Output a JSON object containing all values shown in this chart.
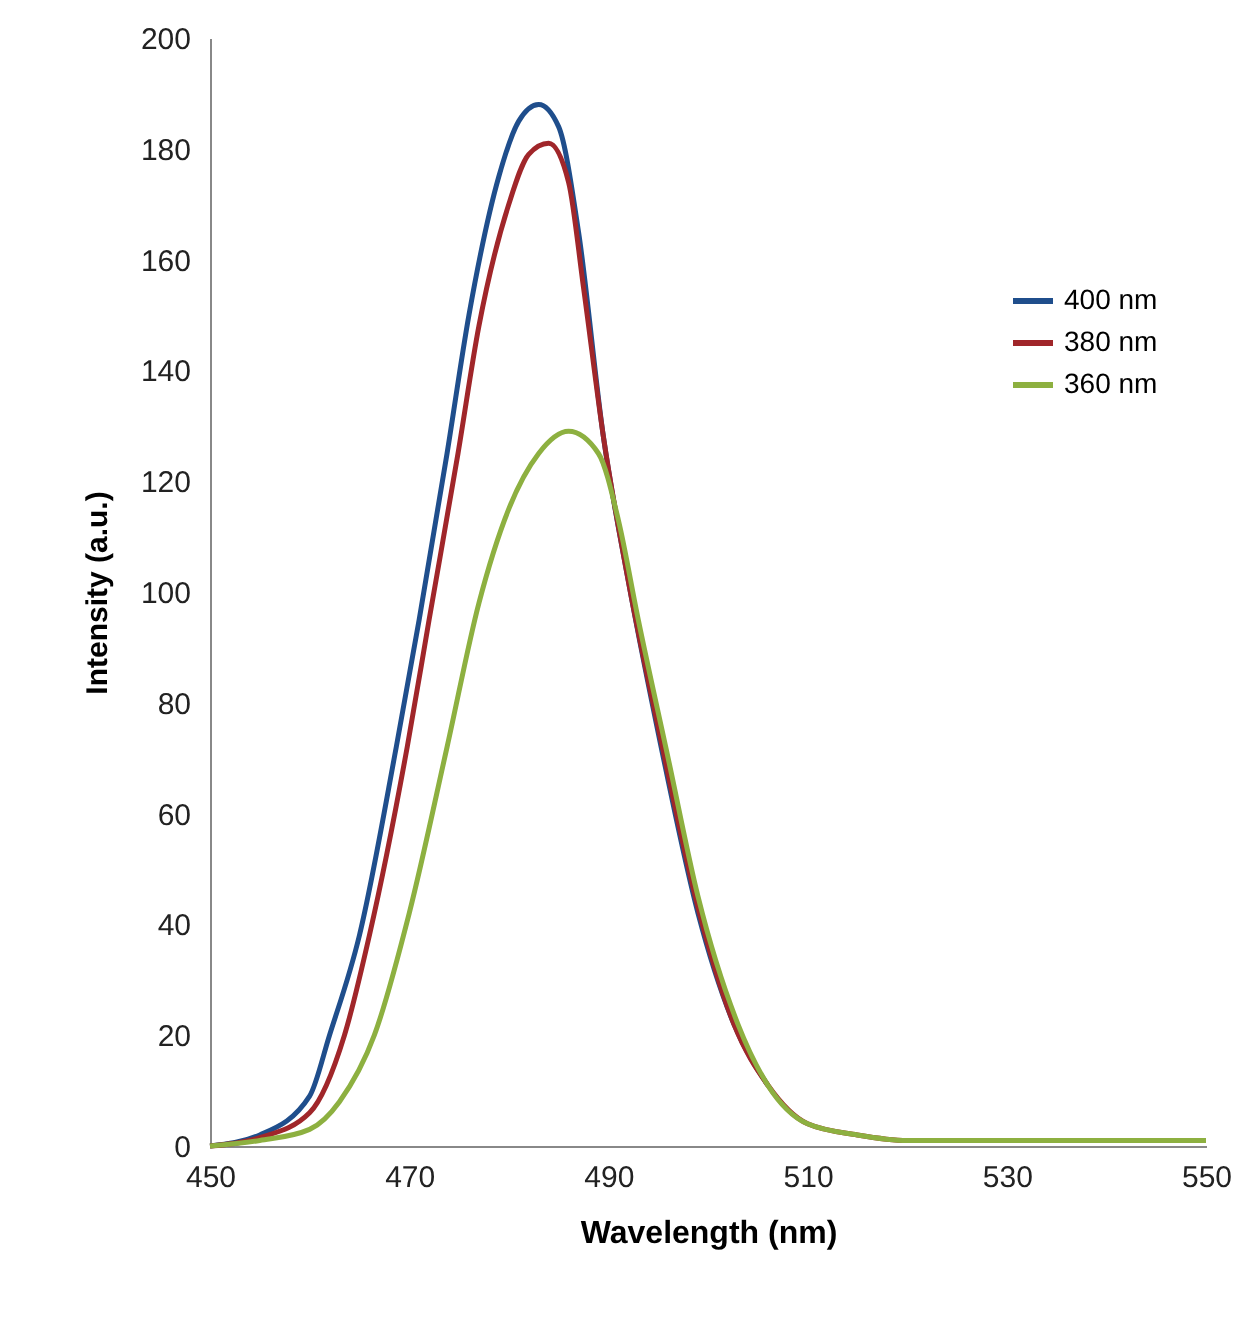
{
  "chart_data": {
    "type": "line",
    "xlabel": "Wavelength (nm)",
    "ylabel": "Intensity (a.u.)",
    "xlim": [
      450,
      550
    ],
    "xticks": [
      450,
      470,
      490,
      510,
      530,
      550
    ],
    "ylim": [
      0,
      200
    ],
    "yticks": [
      0,
      20,
      40,
      60,
      80,
      100,
      120,
      140,
      160,
      180,
      200
    ],
    "grid": false,
    "legend": "top right",
    "marker": "none",
    "line_style": "solid",
    "series": [
      {
        "name": "400 nm",
        "color": "#1f4e8c",
        "x": [
          450,
          455,
          460,
          462,
          465,
          468.7,
          471,
          473.8,
          476,
          479,
          481,
          483,
          485,
          487,
          489.5,
          492,
          495.3,
          499,
          502.6,
          506
        ],
        "values": [
          0,
          2,
          9,
          20,
          38,
          72,
          95,
          125,
          150,
          175,
          185,
          188,
          184,
          165,
          128,
          102,
          72,
          42,
          22,
          11
        ]
      },
      {
        "name": "380 nm",
        "color": "#a0262a",
        "x": [
          450,
          455,
          460,
          463.5,
          466,
          469.8,
          472,
          474.9,
          477,
          480,
          482,
          484,
          486,
          487.5,
          489.5,
          492,
          495.3,
          499,
          502.6,
          506,
          510,
          515,
          520,
          530,
          550
        ],
        "values": [
          0,
          1.5,
          6,
          20,
          38,
          72,
          95,
          125,
          148,
          170,
          179,
          181,
          174,
          155,
          128,
          102,
          73,
          43,
          22,
          11,
          4,
          2,
          1,
          1,
          1
        ]
      },
      {
        "name": "360 nm",
        "color": "#8db040",
        "x": [
          450,
          455,
          460,
          463,
          466.5,
          470,
          473.8,
          477,
          480,
          483,
          486,
          489,
          491,
          493,
          496,
          499,
          503,
          506,
          510,
          515,
          520,
          530,
          550
        ],
        "values": [
          0,
          1,
          3,
          8,
          20,
          42,
          72,
          98,
          115,
          125,
          129,
          125,
          113,
          95,
          70,
          45,
          22,
          11,
          4,
          2,
          1,
          1,
          1
        ]
      }
    ]
  }
}
